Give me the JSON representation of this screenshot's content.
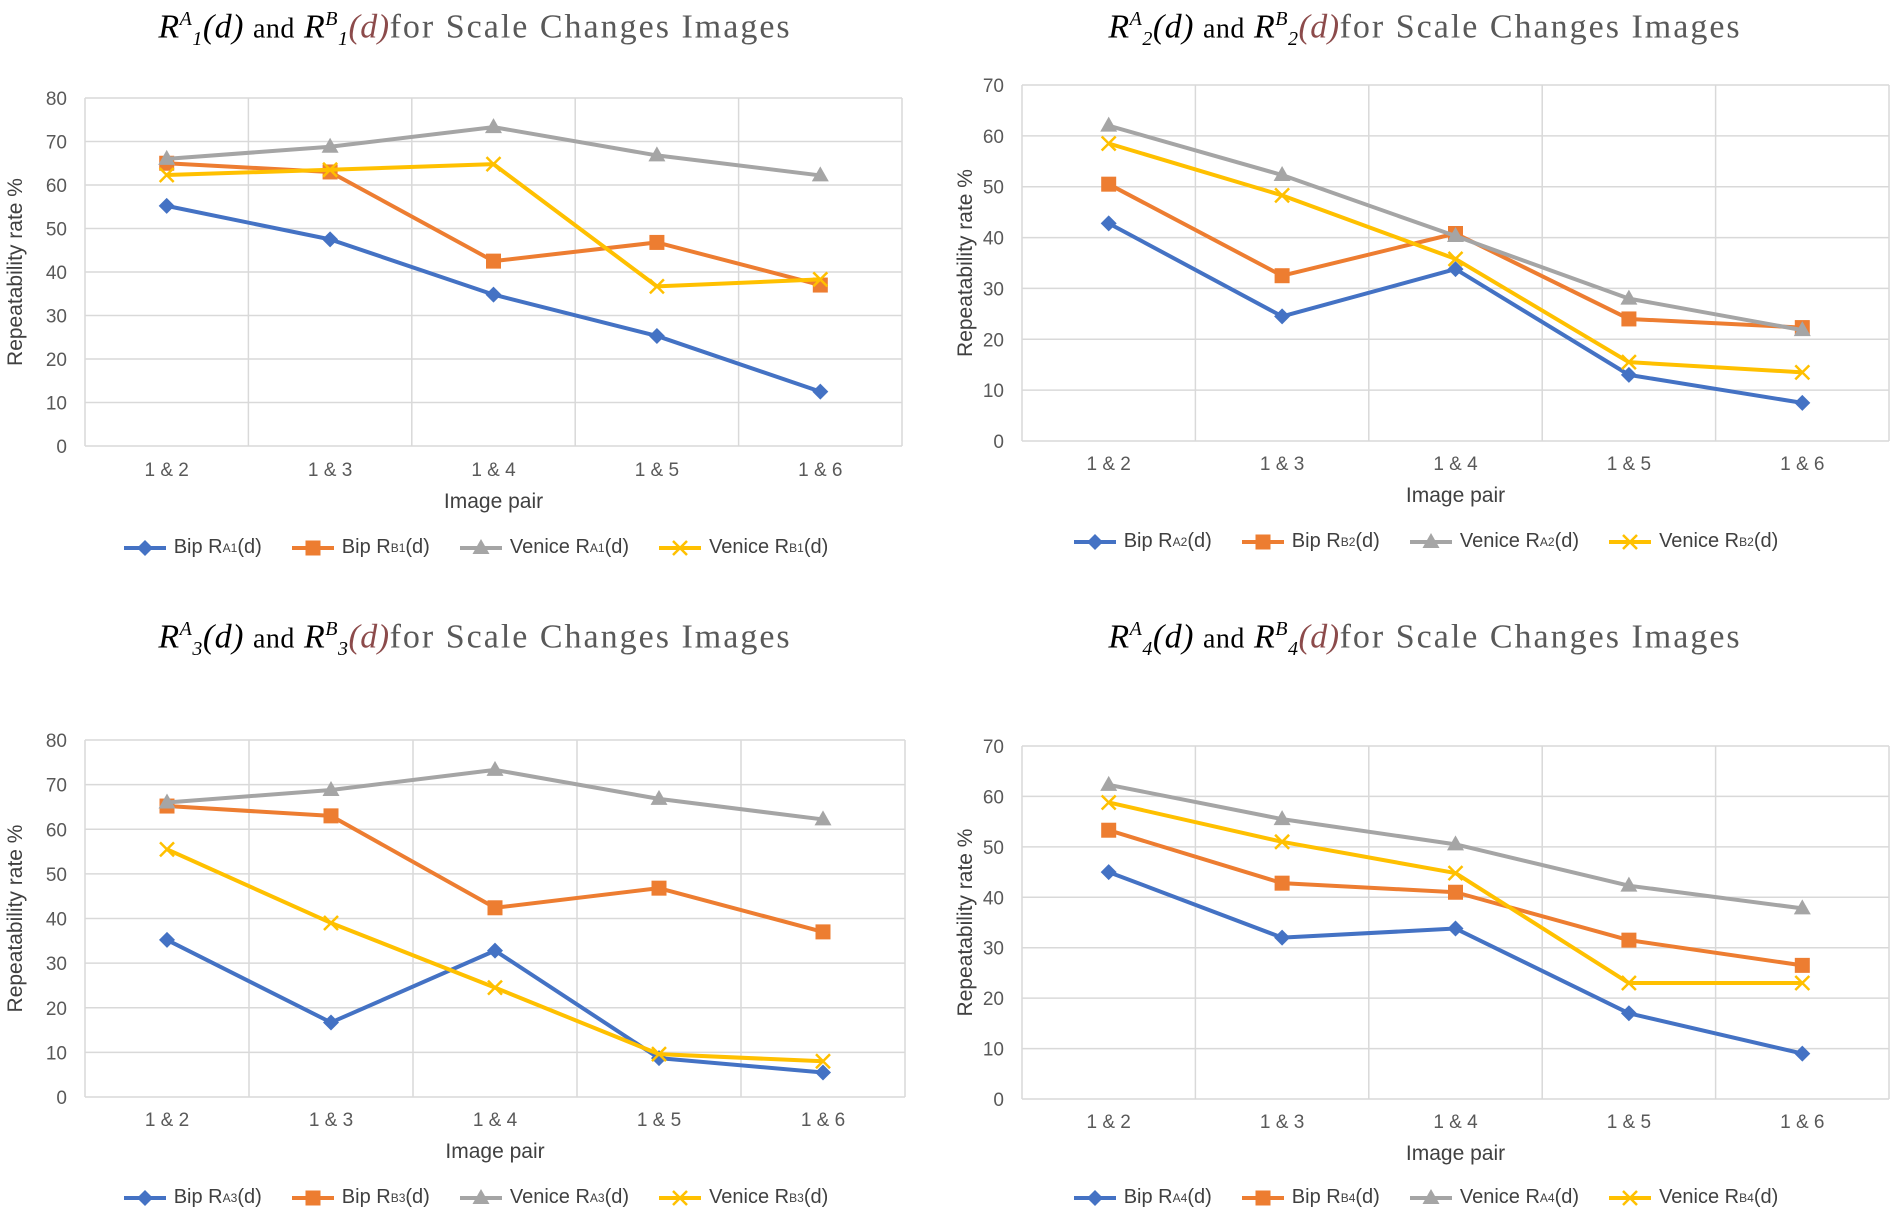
{
  "colors": {
    "bip_a": "#4472C4",
    "bip_b": "#ED7D31",
    "venice_a": "#A5A5A5",
    "venice_b": "#FFC000",
    "grid": "#D9D9D9"
  },
  "chart_data": [
    {
      "type": "line",
      "title": {
        "r": "R",
        "sub": "1",
        "supA": "A",
        "supB": "B",
        "arg": "(d)",
        "and": "and",
        "tail": "for Scale Changes Images"
      },
      "categories": [
        "1 & 2",
        "1 & 3",
        "1 & 4",
        "1 & 5",
        "1 & 6"
      ],
      "xlabel": "Image pair",
      "ylabel": "Repeatability rate %",
      "ylim": [
        0,
        80
      ],
      "yticks": [
        "0",
        "10",
        "20",
        "30",
        "40",
        "50",
        "60",
        "70",
        "80"
      ],
      "series": [
        {
          "key": "bip_a",
          "marker": "diamond",
          "name": "Bip R",
          "sup": "A",
          "sub": "1",
          "tail": "(d)",
          "values": [
            55.2,
            47.5,
            34.8,
            25.3,
            12.5
          ]
        },
        {
          "key": "bip_b",
          "marker": "square",
          "name": "Bip R",
          "sup": "B",
          "sub": "1",
          "tail": "(d)",
          "values": [
            65.0,
            63.0,
            42.5,
            46.8,
            37.0
          ]
        },
        {
          "key": "venice_a",
          "marker": "triangle",
          "name": "Venice R",
          "sup": "A",
          "sub": "1",
          "tail": "(d)",
          "values": [
            66.0,
            68.8,
            73.3,
            66.8,
            62.2
          ]
        },
        {
          "key": "venice_b",
          "marker": "x",
          "name": "Venice R",
          "sup": "B",
          "sub": "1",
          "tail": "(d)",
          "values": [
            62.3,
            63.5,
            64.8,
            36.7,
            38.3
          ]
        }
      ]
    },
    {
      "type": "line",
      "title": {
        "r": "R",
        "sub": "2",
        "supA": "A",
        "supB": "B",
        "arg": "(d)",
        "and": "and",
        "tail": "for Scale Changes Images"
      },
      "categories": [
        "1 & 2",
        "1 & 3",
        "1 & 4",
        "1 & 5",
        "1 & 6"
      ],
      "xlabel": "Image pair",
      "ylabel": "Repeatability rate %",
      "ylim": [
        0,
        70
      ],
      "yticks": [
        "0",
        "10",
        "20",
        "30",
        "40",
        "50",
        "60",
        "70"
      ],
      "series": [
        {
          "key": "bip_a",
          "marker": "diamond",
          "name": "Bip R",
          "sup": "A",
          "sub": "2",
          "tail": "(d)",
          "values": [
            42.8,
            24.5,
            33.8,
            13.0,
            7.5
          ]
        },
        {
          "key": "bip_b",
          "marker": "square",
          "name": "Bip R",
          "sup": "B",
          "sub": "2",
          "tail": "(d)",
          "values": [
            50.5,
            32.5,
            40.8,
            24.0,
            22.3
          ]
        },
        {
          "key": "venice_a",
          "marker": "triangle",
          "name": "Venice R",
          "sup": "A",
          "sub": "2",
          "tail": "(d)",
          "values": [
            62.0,
            52.3,
            40.3,
            28.0,
            21.8
          ]
        },
        {
          "key": "venice_b",
          "marker": "x",
          "name": "Venice R",
          "sup": "B",
          "sub": "2",
          "tail": "(d)",
          "values": [
            58.5,
            48.3,
            35.8,
            15.5,
            13.5
          ]
        }
      ]
    },
    {
      "type": "line",
      "title": {
        "r": "R",
        "sub": "3",
        "supA": "A",
        "supB": "B",
        "arg": "(d)",
        "and": "and",
        "tail": "for Scale Changes Images"
      },
      "categories": [
        "1 & 2",
        "1 & 3",
        "1 & 4",
        "1 & 5",
        "1 & 6"
      ],
      "xlabel": "Image pair",
      "ylabel": "Repeatability rate %",
      "ylim": [
        0,
        80
      ],
      "yticks": [
        "0",
        "10",
        "20",
        "30",
        "40",
        "50",
        "60",
        "70",
        "80"
      ],
      "series": [
        {
          "key": "bip_a",
          "marker": "diamond",
          "name": "Bip R",
          "sup": "A",
          "sub": "3",
          "tail": "(d)",
          "values": [
            35.2,
            16.7,
            32.8,
            8.7,
            5.5
          ]
        },
        {
          "key": "bip_b",
          "marker": "square",
          "name": "Bip R",
          "sup": "B",
          "sub": "3",
          "tail": "(d)",
          "values": [
            65.2,
            63.0,
            42.4,
            46.8,
            37.0
          ]
        },
        {
          "key": "venice_a",
          "marker": "triangle",
          "name": "Venice R",
          "sup": "A",
          "sub": "3",
          "tail": "(d)",
          "values": [
            66.0,
            68.8,
            73.3,
            66.8,
            62.2
          ]
        },
        {
          "key": "venice_b",
          "marker": "x",
          "name": "Venice R",
          "sup": "B",
          "sub": "3",
          "tail": "(d)",
          "values": [
            55.5,
            39.0,
            24.5,
            9.6,
            8.0
          ]
        }
      ]
    },
    {
      "type": "line",
      "title": {
        "r": "R",
        "sub": "4",
        "supA": "A",
        "supB": "B",
        "arg": "(d)",
        "and": "and",
        "tail": "for Scale Changes Images"
      },
      "categories": [
        "1 & 2",
        "1 & 3",
        "1 & 4",
        "1 & 5",
        "1 & 6"
      ],
      "xlabel": "Image pair",
      "ylabel": "Repeatability rate %",
      "ylim": [
        0,
        70
      ],
      "yticks": [
        "0",
        "10",
        "20",
        "30",
        "40",
        "50",
        "60",
        "70"
      ],
      "series": [
        {
          "key": "bip_a",
          "marker": "diamond",
          "name": "Bip R",
          "sup": "A",
          "sub": "4",
          "tail": "(d)",
          "values": [
            45.0,
            32.0,
            33.8,
            17.0,
            9.0
          ]
        },
        {
          "key": "bip_b",
          "marker": "square",
          "name": "Bip R",
          "sup": "B",
          "sub": "4",
          "tail": "(d)",
          "values": [
            53.3,
            42.8,
            41.0,
            31.5,
            26.5
          ]
        },
        {
          "key": "venice_a",
          "marker": "triangle",
          "name": "Venice R",
          "sup": "A",
          "sub": "4",
          "tail": "(d)",
          "values": [
            62.3,
            55.5,
            50.5,
            42.3,
            37.8
          ]
        },
        {
          "key": "venice_b",
          "marker": "x",
          "name": "Venice R",
          "sup": "B",
          "sub": "4",
          "tail": "(d)",
          "values": [
            58.8,
            51.0,
            44.8,
            23.0,
            23.0
          ]
        }
      ]
    }
  ]
}
